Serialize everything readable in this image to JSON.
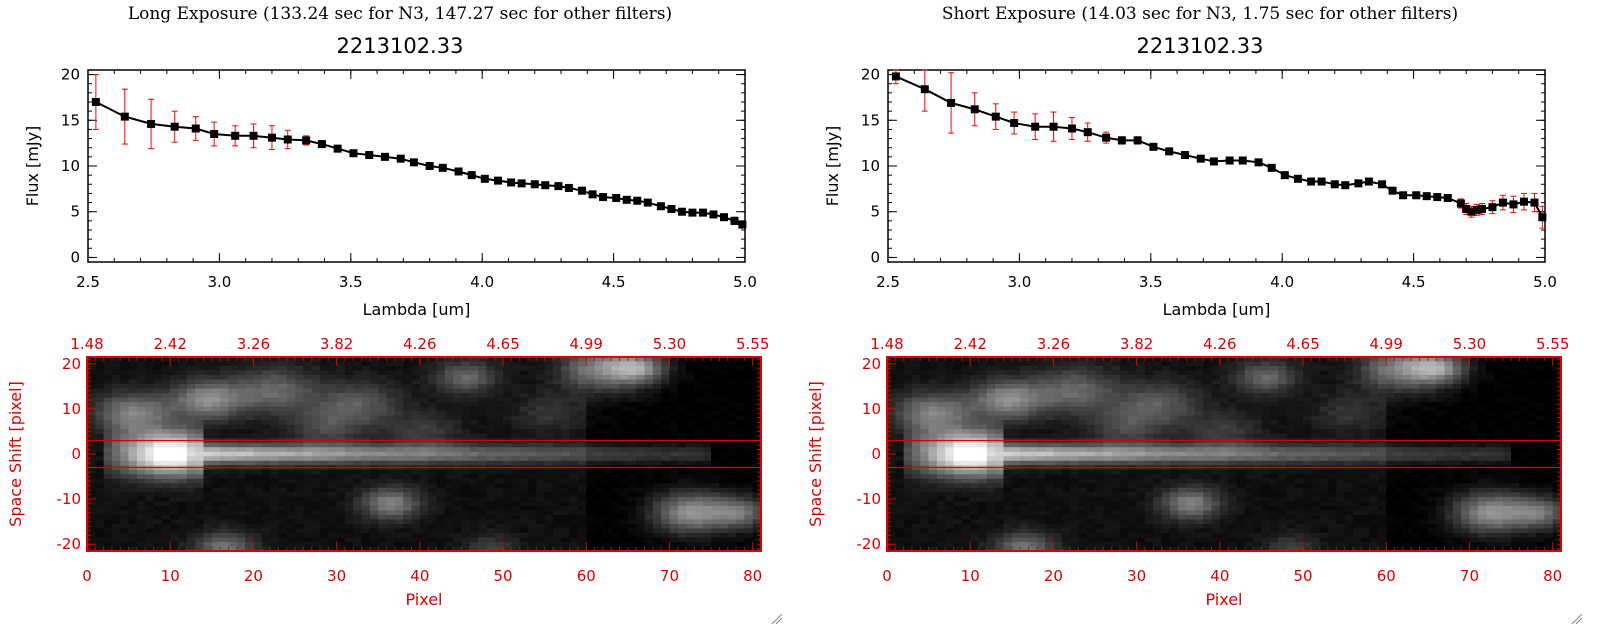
{
  "colors": {
    "series": "#000000",
    "errorbar": "#ff0000",
    "image_axes": "#dd0000",
    "aperture": "#dd0000",
    "background": "#ffffff"
  },
  "chart_data": [
    {
      "type": "line",
      "exposure_title": "Long Exposure (133.24 sec for N3, 147.27 sec for other filters)",
      "title": "2213102.33",
      "xlabel": "Lambda [um]",
      "ylabel": "Flux [mJy]",
      "xlim": [
        2.5,
        5.0
      ],
      "ylim": [
        -0.5,
        20.5
      ],
      "xticks": [
        "2.5",
        "3.0",
        "3.5",
        "4.0",
        "4.5",
        "5.0"
      ],
      "yticks": [
        "0",
        "5",
        "10",
        "15",
        "20"
      ],
      "series": [
        {
          "x": [
            2.53,
            2.64,
            2.74,
            2.83,
            2.91,
            2.98,
            3.06,
            3.13,
            3.2,
            3.26,
            3.33,
            3.39,
            3.45,
            3.51,
            3.57,
            3.63,
            3.69,
            3.74,
            3.8,
            3.85,
            3.91,
            3.96,
            4.01,
            4.06,
            4.11,
            4.15,
            4.2,
            4.24,
            4.29,
            4.33,
            4.38,
            4.42,
            4.46,
            4.51,
            4.55,
            4.59,
            4.63,
            4.68,
            4.72,
            4.76,
            4.8,
            4.84,
            4.88,
            4.92,
            4.96,
            4.99
          ],
          "y": [
            17.0,
            15.4,
            14.6,
            14.3,
            14.1,
            13.5,
            13.3,
            13.3,
            13.1,
            12.9,
            12.8,
            12.4,
            11.9,
            11.4,
            11.2,
            11.0,
            10.8,
            10.4,
            10.0,
            9.8,
            9.4,
            9.0,
            8.6,
            8.4,
            8.2,
            8.1,
            8.0,
            7.9,
            7.8,
            7.6,
            7.3,
            6.9,
            6.6,
            6.5,
            6.3,
            6.2,
            6.0,
            5.6,
            5.3,
            5.0,
            4.9,
            4.9,
            4.7,
            4.4,
            4.0,
            3.6
          ],
          "yerr": [
            3.0,
            3.0,
            2.7,
            1.7,
            1.3,
            1.3,
            1.1,
            1.3,
            1.3,
            1.0,
            0.5,
            0.3,
            0.2,
            0.2,
            0.2,
            0.2,
            0.2,
            0.2,
            0.2,
            0.2,
            0.2,
            0.2,
            0.2,
            0.2,
            0.2,
            0.2,
            0.2,
            0.2,
            0.2,
            0.2,
            0.2,
            0.2,
            0.2,
            0.2,
            0.2,
            0.2,
            0.2,
            0.2,
            0.2,
            0.2,
            0.2,
            0.2,
            0.3,
            0.3,
            0.4,
            0.4
          ]
        }
      ]
    },
    {
      "type": "heatmap",
      "xlabel": "Pixel",
      "ylabel": "Space Shift [pixel]",
      "xlim": [
        0,
        81
      ],
      "ylim": [
        -21.5,
        21.5
      ],
      "xticks": [
        "0",
        "10",
        "20",
        "30",
        "40",
        "50",
        "60",
        "70",
        "80"
      ],
      "yticks": [
        "-20",
        "-10",
        "0",
        "10",
        "20"
      ],
      "top_axis_ticks": [
        "1.48",
        "2.42",
        "3.26",
        "3.82",
        "4.26",
        "4.65",
        "4.99",
        "5.30",
        "5.55"
      ],
      "aperture_rows": [
        -3,
        3
      ]
    },
    {
      "type": "line",
      "exposure_title": "Short Exposure (14.03 sec for N3, 1.75 sec for other filters)",
      "title": "2213102.33",
      "xlabel": "Lambda [um]",
      "ylabel": "Flux [mJy]",
      "xlim": [
        2.5,
        5.0
      ],
      "ylim": [
        -0.5,
        20.5
      ],
      "xticks": [
        "2.5",
        "3.0",
        "3.5",
        "4.0",
        "4.5",
        "5.0"
      ],
      "yticks": [
        "0",
        "5",
        "10",
        "15",
        "20"
      ],
      "series": [
        {
          "x": [
            2.53,
            2.64,
            2.74,
            2.83,
            2.91,
            2.98,
            3.06,
            3.13,
            3.2,
            3.26,
            3.33,
            3.39,
            3.45,
            3.51,
            3.57,
            3.63,
            3.69,
            3.74,
            3.8,
            3.85,
            3.91,
            3.96,
            4.01,
            4.06,
            4.11,
            4.15,
            4.2,
            4.24,
            4.29,
            4.33,
            4.38,
            4.42,
            4.46,
            4.51,
            4.55,
            4.59,
            4.63,
            4.68,
            4.7,
            4.72,
            4.74,
            4.76,
            4.8,
            4.84,
            4.88,
            4.92,
            4.96,
            4.99
          ],
          "y": [
            19.8,
            18.4,
            16.9,
            16.2,
            15.4,
            14.7,
            14.3,
            14.3,
            14.1,
            13.7,
            13.1,
            12.8,
            12.8,
            12.1,
            11.6,
            11.2,
            10.8,
            10.5,
            10.6,
            10.6,
            10.4,
            9.8,
            9.0,
            8.6,
            8.3,
            8.3,
            8.0,
            7.9,
            8.1,
            8.3,
            8.0,
            7.3,
            6.8,
            6.8,
            6.7,
            6.6,
            6.5,
            5.9,
            5.3,
            5.0,
            5.2,
            5.3,
            5.5,
            6.0,
            5.8,
            6.1,
            6.0,
            4.4
          ],
          "yerr": [
            0.8,
            2.4,
            3.3,
            1.8,
            1.4,
            1.2,
            1.4,
            1.6,
            1.2,
            1.0,
            0.6,
            0.4,
            0.4,
            0.2,
            0.2,
            0.2,
            0.2,
            0.2,
            0.2,
            0.2,
            0.2,
            0.2,
            0.2,
            0.2,
            0.2,
            0.2,
            0.2,
            0.2,
            0.2,
            0.3,
            0.3,
            0.3,
            0.3,
            0.3,
            0.3,
            0.3,
            0.3,
            0.5,
            0.6,
            0.6,
            0.6,
            0.6,
            0.7,
            0.8,
            0.9,
            0.9,
            1.0,
            1.2
          ]
        }
      ]
    },
    {
      "type": "heatmap",
      "xlabel": "Pixel",
      "ylabel": "Space Shift [pixel]",
      "xlim": [
        0,
        81
      ],
      "ylim": [
        -21.5,
        21.5
      ],
      "xticks": [
        "0",
        "10",
        "20",
        "30",
        "40",
        "50",
        "60",
        "70",
        "80"
      ],
      "yticks": [
        "-20",
        "-10",
        "0",
        "10",
        "20"
      ],
      "top_axis_ticks": [
        "1.48",
        "2.42",
        "3.26",
        "3.82",
        "4.26",
        "4.65",
        "4.99",
        "5.30",
        "5.55"
      ],
      "aperture_rows": [
        -3,
        3
      ]
    }
  ]
}
